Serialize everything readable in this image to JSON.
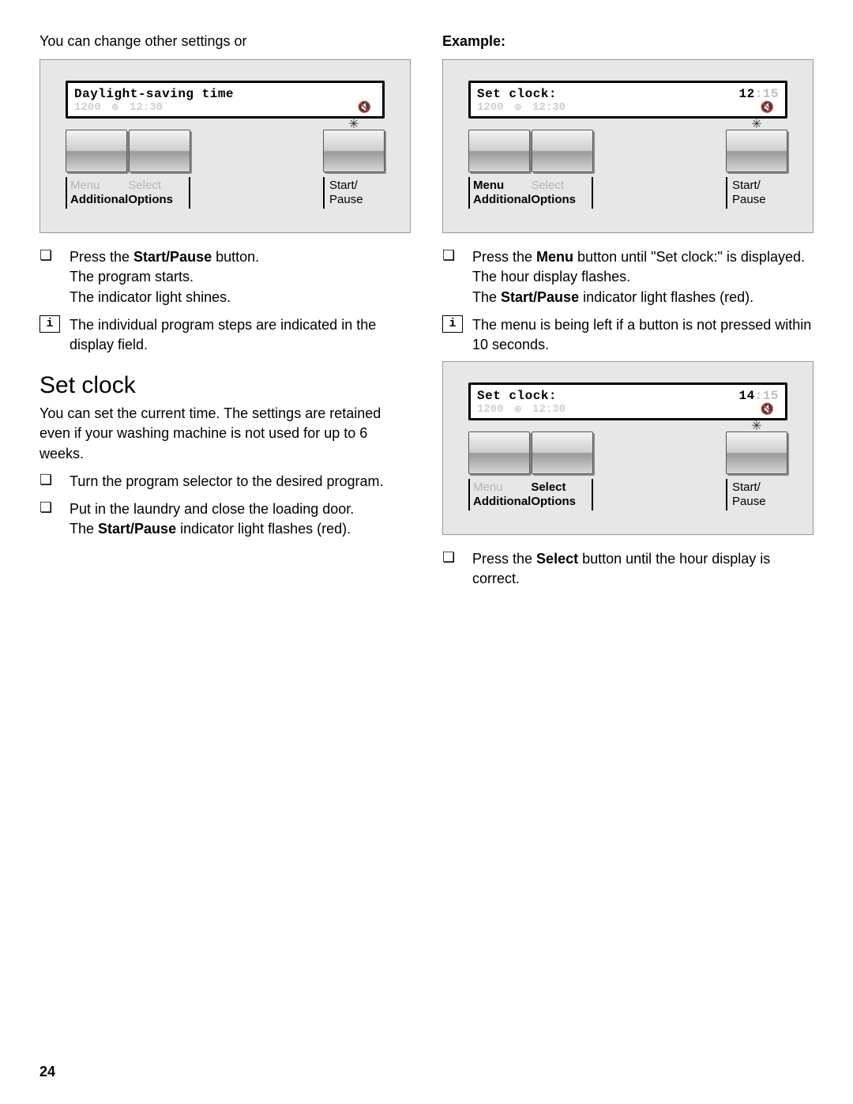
{
  "pageNumber": "24",
  "left": {
    "lead": "You can change other settings or",
    "panel1": {
      "lcd": {
        "line1_left": "Daylight-saving time",
        "line1_right_a": "",
        "line1_right_b": "",
        "line2_a": "1200",
        "line2_b": "⊕",
        "line2_c": "12:30",
        "line2_spk": "🔇"
      },
      "labels": {
        "menu_top": "Menu",
        "menu_bottom": "Additional",
        "select_top": "Select",
        "select_bottom": "Options",
        "start_top": "Start/",
        "start_bottom": "Pause",
        "menu_active": false,
        "select_active": false,
        "startpause_active": true,
        "menu_bold": false,
        "select_bold": false
      }
    },
    "step1_a": "Press the ",
    "step1_bold": "Start/Pause",
    "step1_b": " button.",
    "step1_sub1": "The program starts.",
    "step1_sub2": "The indicator light shines.",
    "info1": "The individual program steps are indicated in the display field.",
    "h2": "Set clock",
    "para1": "You can set the current time. The settings are retained even if your washing machine is not used for up to 6 weeks.",
    "step2": "Turn the program selector to the desired program.",
    "step3_a": "Put in the laundry and close the loading door.",
    "step3_b_pre": "The ",
    "step3_b_bold": "Start/Pause",
    "step3_b_post": " indicator light flashes (red)."
  },
  "right": {
    "lead": "Example:",
    "panel2": {
      "lcd": {
        "line1_left": "Set clock:",
        "line1_right_a": "12",
        "line1_right_b": ":15",
        "line2_a": "1200",
        "line2_b": "⊕",
        "line2_c": "12:30",
        "line2_spk": "🔇"
      },
      "labels": {
        "menu_top": "Menu",
        "menu_bottom": "Additional",
        "select_top": "Select",
        "select_bottom": "Options",
        "start_top": "Start/",
        "start_bottom": "Pause",
        "menu_active": true,
        "select_active": false,
        "startpause_active": true,
        "menu_bold": true,
        "select_bold": false
      }
    },
    "step1_a": "Press the ",
    "step1_bold": "Menu",
    "step1_b": " button until \"Set clock:\" is displayed.",
    "step1_sub1": "The hour display flashes.",
    "step1_sub2_pre": "The ",
    "step1_sub2_bold": "Start/Pause",
    "step1_sub2_post": " indicator light flashes (red).",
    "info1": "The menu is being left if a button is not pressed within 10 seconds.",
    "panel3": {
      "lcd": {
        "line1_left": "Set clock:",
        "line1_right_a": "14",
        "line1_right_b": ":15",
        "line2_a": "1200",
        "line2_b": "⊕",
        "line2_c": "12:30",
        "line2_spk": "🔇"
      },
      "labels": {
        "menu_top": "Menu",
        "menu_bottom": "Additional",
        "select_top": "Select",
        "select_bottom": "Options",
        "start_top": "Start/",
        "start_bottom": "Pause",
        "menu_active": false,
        "select_active": true,
        "startpause_active": true,
        "menu_bold": false,
        "select_bold": true
      }
    },
    "step2_a": "Press the ",
    "step2_bold": "Select",
    "step2_b": " button until the hour display is correct."
  },
  "glyphs": {
    "bullet": "❏",
    "info": "i"
  }
}
